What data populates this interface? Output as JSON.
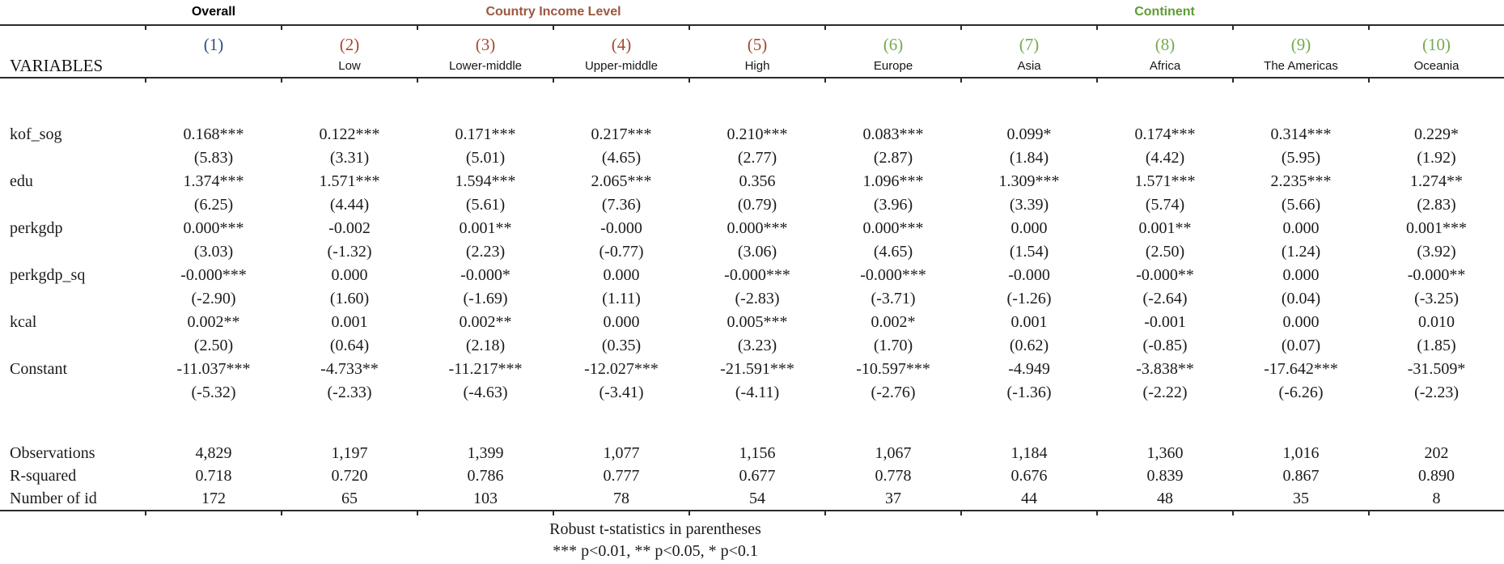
{
  "table": {
    "groups": [
      {
        "label": "Overall",
        "color": "#000000",
        "span": 1
      },
      {
        "label": "Country Income Level",
        "color": "#9C5740",
        "span": 4
      },
      {
        "label": "Continent",
        "color": "#5E9C34",
        "span": 5
      }
    ],
    "column_numbers": [
      "(1)",
      "(2)",
      "(3)",
      "(4)",
      "(5)",
      "(6)",
      "(7)",
      "(8)",
      "(9)",
      "(10)"
    ],
    "column_number_colors": [
      "#2E4F7E",
      "#A34A2F",
      "#A34A2F",
      "#A34A2F",
      "#A34A2F",
      "#74AB4E",
      "#74AB4E",
      "#74AB4E",
      "#74AB4E",
      "#74AB4E"
    ],
    "variables_header": "VARIABLES",
    "column_names": [
      "",
      "Low",
      "Lower-middle",
      "Upper-middle",
      "High",
      "Europe",
      "Asia",
      "Africa",
      "The Americas",
      "Oceania"
    ],
    "coefficient_rows": [
      {
        "variable": "kof_sog",
        "coefs": [
          "0.168***",
          "0.122***",
          "0.171***",
          "0.217***",
          "0.210***",
          "0.083***",
          "0.099*",
          "0.174***",
          "0.314***",
          "0.229*"
        ],
        "tstats": [
          "(5.83)",
          "(3.31)",
          "(5.01)",
          "(4.65)",
          "(2.77)",
          "(2.87)",
          "(1.84)",
          "(4.42)",
          "(5.95)",
          "(1.92)"
        ]
      },
      {
        "variable": "edu",
        "coefs": [
          "1.374***",
          "1.571***",
          "1.594***",
          "2.065***",
          "0.356",
          "1.096***",
          "1.309***",
          "1.571***",
          "2.235***",
          "1.274**"
        ],
        "tstats": [
          "(6.25)",
          "(4.44)",
          "(5.61)",
          "(7.36)",
          "(0.79)",
          "(3.96)",
          "(3.39)",
          "(5.74)",
          "(5.66)",
          "(2.83)"
        ]
      },
      {
        "variable": "perkgdp",
        "coefs": [
          "0.000***",
          "-0.002",
          "0.001**",
          "-0.000",
          "0.000***",
          "0.000***",
          "0.000",
          "0.001**",
          "0.000",
          "0.001***"
        ],
        "tstats": [
          "(3.03)",
          "(-1.32)",
          "(2.23)",
          "(-0.77)",
          "(3.06)",
          "(4.65)",
          "(1.54)",
          "(2.50)",
          "(1.24)",
          "(3.92)"
        ]
      },
      {
        "variable": "perkgdp_sq",
        "coefs": [
          "-0.000***",
          "0.000",
          "-0.000*",
          "0.000",
          "-0.000***",
          "-0.000***",
          "-0.000",
          "-0.000**",
          "0.000",
          "-0.000**"
        ],
        "tstats": [
          "(-2.90)",
          "(1.60)",
          "(-1.69)",
          "(1.11)",
          "(-2.83)",
          "(-3.71)",
          "(-1.26)",
          "(-2.64)",
          "(0.04)",
          "(-3.25)"
        ]
      },
      {
        "variable": "kcal",
        "coefs": [
          "0.002**",
          "0.001",
          "0.002**",
          "0.000",
          "0.005***",
          "0.002*",
          "0.001",
          "-0.001",
          "0.000",
          "0.010"
        ],
        "tstats": [
          "(2.50)",
          "(0.64)",
          "(2.18)",
          "(0.35)",
          "(3.23)",
          "(1.70)",
          "(0.62)",
          "(-0.85)",
          "(0.07)",
          "(1.85)"
        ]
      },
      {
        "variable": "Constant",
        "coefs": [
          "-11.037***",
          "-4.733**",
          "-11.217***",
          "-12.027***",
          "-21.591***",
          "-10.597***",
          "-4.949",
          "-3.838**",
          "-17.642***",
          "-31.509*"
        ],
        "tstats": [
          "(-5.32)",
          "(-2.33)",
          "(-4.63)",
          "(-3.41)",
          "(-4.11)",
          "(-2.76)",
          "(-1.36)",
          "(-2.22)",
          "(-6.26)",
          "(-2.23)"
        ]
      }
    ],
    "stats_rows": [
      {
        "label": "Observations",
        "values": [
          "4,829",
          "1,197",
          "1,399",
          "1,077",
          "1,156",
          "1,067",
          "1,184",
          "1,360",
          "1,016",
          "202"
        ]
      },
      {
        "label": "R-squared",
        "values": [
          "0.718",
          "0.720",
          "0.786",
          "0.777",
          "0.677",
          "0.778",
          "0.676",
          "0.839",
          "0.867",
          "0.890"
        ]
      },
      {
        "label": "Number of id",
        "values": [
          "172",
          "65",
          "103",
          "78",
          "54",
          "37",
          "44",
          "48",
          "35",
          "8"
        ]
      }
    ],
    "notes": [
      "Robust t-statistics in parentheses",
      "*** p<0.01, ** p<0.05, * p<0.1"
    ]
  }
}
